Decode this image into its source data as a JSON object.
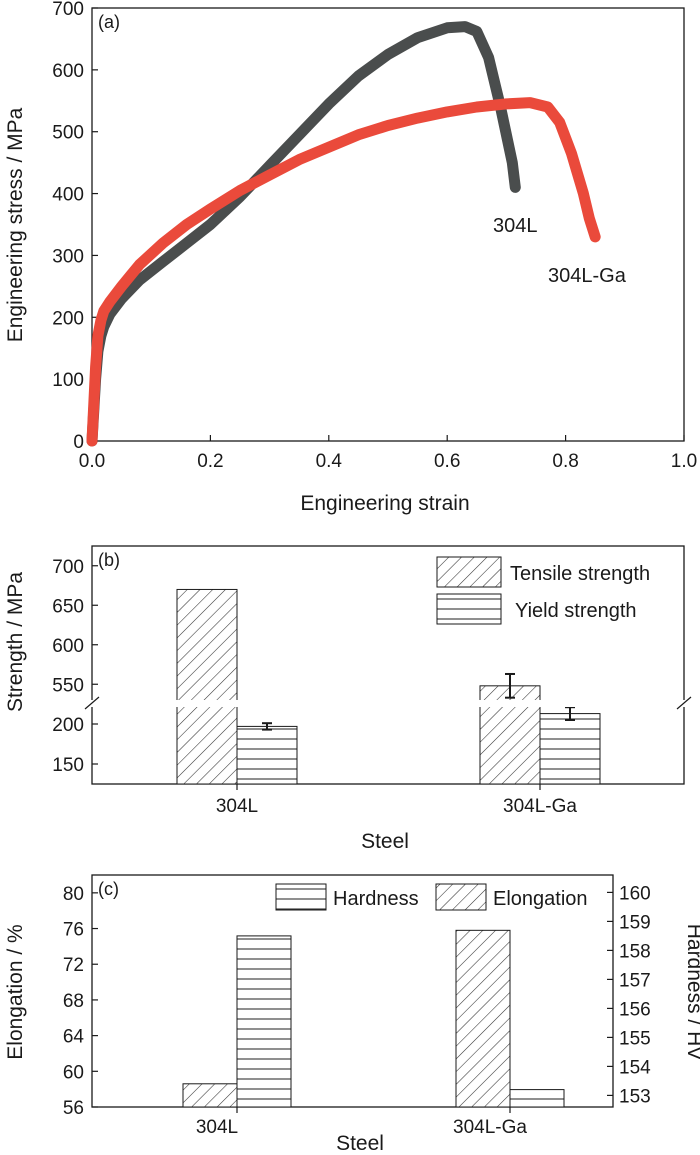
{
  "colors": {
    "s304L": "#4a4d4d",
    "s304LGa": "#ea4a3b",
    "hardness_axis": "#ea4a3b",
    "ink": "#1a1a1a"
  },
  "chart_data": [
    {
      "type": "line",
      "panel": "(a)",
      "xlabel": "Engineering strain",
      "ylabel": "Engineering stress / MPa",
      "xlim": [
        0,
        1.0
      ],
      "ylim": [
        0,
        700
      ],
      "xticks": [
        "0.0",
        "0.2",
        "0.4",
        "0.6",
        "0.8",
        "1.0"
      ],
      "yticks": [
        "0",
        "100",
        "200",
        "300",
        "400",
        "500",
        "600",
        "700"
      ],
      "series": [
        {
          "name": "304L",
          "x": [
            0.0,
            0.003,
            0.006,
            0.01,
            0.015,
            0.02,
            0.03,
            0.05,
            0.08,
            0.12,
            0.16,
            0.2,
            0.25,
            0.3,
            0.35,
            0.4,
            0.45,
            0.5,
            0.55,
            0.6,
            0.63,
            0.65,
            0.67,
            0.69,
            0.71,
            0.715
          ],
          "y": [
            0,
            50,
            100,
            145,
            170,
            185,
            205,
            230,
            260,
            290,
            320,
            350,
            395,
            445,
            495,
            545,
            590,
            625,
            652,
            668,
            670,
            662,
            620,
            540,
            450,
            410
          ]
        },
        {
          "name": "304L-Ga",
          "x": [
            0.0,
            0.003,
            0.006,
            0.01,
            0.015,
            0.02,
            0.03,
            0.05,
            0.08,
            0.12,
            0.16,
            0.2,
            0.25,
            0.3,
            0.35,
            0.4,
            0.45,
            0.5,
            0.55,
            0.6,
            0.65,
            0.7,
            0.74,
            0.77,
            0.79,
            0.81,
            0.83,
            0.84,
            0.85
          ],
          "y": [
            0,
            60,
            120,
            170,
            195,
            210,
            225,
            250,
            285,
            320,
            350,
            375,
            405,
            430,
            455,
            475,
            495,
            510,
            522,
            532,
            540,
            545,
            547,
            540,
            515,
            465,
            400,
            360,
            330
          ]
        }
      ]
    },
    {
      "type": "bar",
      "panel": "(b)",
      "xlabel": "Steel",
      "ylabel": "Strength / MPa",
      "categories": [
        "304L",
        "304L-Ga"
      ],
      "yticks": [
        "150",
        "200",
        "550",
        "600",
        "650",
        "700"
      ],
      "axis_break": {
        "lower_range": [
          125,
          225
        ],
        "upper_range": [
          525,
          725
        ]
      },
      "series": [
        {
          "name": "Tensile strength",
          "values": [
            670,
            548
          ],
          "errors": [
            0,
            15
          ]
        },
        {
          "name": "Yield strength",
          "values": [
            197,
            213
          ],
          "errors": [
            4,
            8
          ]
        }
      ]
    },
    {
      "type": "bar",
      "panel": "(c)",
      "xlabel": "Steel",
      "ylabel": "Elongation / %",
      "y2label": "Hardness / HV",
      "categories": [
        "304L",
        "304L-Ga"
      ],
      "ylim": [
        56,
        82
      ],
      "y2lim": [
        152.6,
        160.6
      ],
      "yticks": [
        "56",
        "60",
        "64",
        "68",
        "72",
        "76",
        "80"
      ],
      "y2ticks": [
        "153",
        "154",
        "155",
        "156",
        "157",
        "158",
        "159",
        "160"
      ],
      "series": [
        {
          "name": "Elongation",
          "axis": "left",
          "values": [
            58.6,
            75.8
          ]
        },
        {
          "name": "Hardness",
          "axis": "right",
          "values": [
            158.5,
            153.2
          ]
        }
      ]
    }
  ]
}
